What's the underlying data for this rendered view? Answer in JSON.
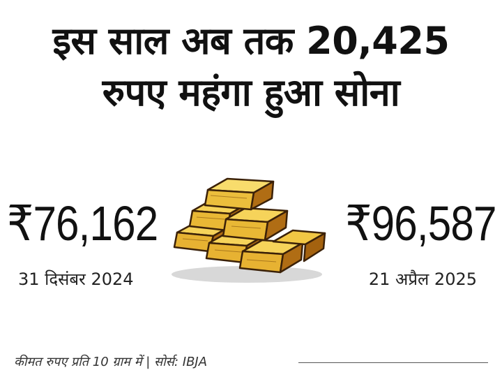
{
  "headline": {
    "line1": "इस साल अब तक 20,425",
    "line2": "रुपए महंगा हुआ सोना"
  },
  "left": {
    "price": "₹76,162",
    "date": "31 दिसंबर 2024"
  },
  "right": {
    "price": "₹96,587",
    "date": "21 अप्रैल 2025"
  },
  "footer": {
    "note": "कीमत रुपए प्रति 10 ग्राम में | सोर्स: IBJA"
  },
  "colors": {
    "gold_light": "#f2c744",
    "gold_mid": "#d99a1e",
    "gold_dark": "#9a5a10",
    "outline": "#3b2108"
  },
  "image": {
    "icon": "gold-bars-icon"
  }
}
